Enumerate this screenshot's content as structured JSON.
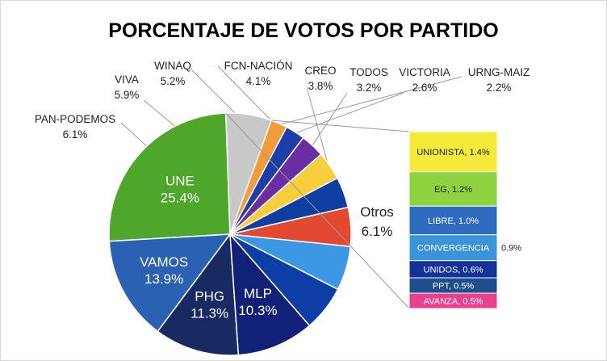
{
  "chart_data": {
    "type": "pie",
    "title": "PORCENTAJE DE VOTOS POR PARTIDO",
    "slices": [
      {
        "name": "UNE",
        "value": 25.4,
        "label": "25.4%",
        "color": "#4ea72a"
      },
      {
        "name": "VAMOS",
        "value": 13.9,
        "label": "13.9%",
        "color": "#2b61b3"
      },
      {
        "name": "PHG",
        "value": 11.3,
        "label": "11.3%",
        "color": "#172b62"
      },
      {
        "name": "MLP",
        "value": 10.3,
        "label": "10.3%",
        "color": "#122178"
      },
      {
        "name": "PAN-PODEMOS",
        "value": 6.1,
        "label": "6.1%",
        "color": "#0d3ea6"
      },
      {
        "name": "VIVA",
        "value": 5.9,
        "label": "5.9%",
        "color": "#3d97e4"
      },
      {
        "name": "WINAQ",
        "value": 5.2,
        "label": "5.2%",
        "color": "#e34931"
      },
      {
        "name": "FCN-NACIÓN",
        "value": 4.1,
        "label": "4.1%",
        "color": "#0e3ea0"
      },
      {
        "name": "CREO",
        "value": 3.8,
        "label": "3.8%",
        "color": "#f7cf3c"
      },
      {
        "name": "TODOS",
        "value": 3.2,
        "label": "3.2%",
        "color": "#6a2ea2"
      },
      {
        "name": "VICTORIA",
        "value": 2.6,
        "label": "2.6%",
        "color": "#1d3ea8"
      },
      {
        "name": "URNG-MAIZ",
        "value": 2.2,
        "label": "2.2%",
        "color": "#f39a3a"
      },
      {
        "name": "Otros",
        "value": 6.1,
        "label": "6.1%",
        "color": "#c8c8c8"
      }
    ],
    "otros_breakdown": [
      {
        "name": "UNIONISTA",
        "value": 1.4,
        "text": "UNIONISTA, 1.4%",
        "color": "#f4ea3a",
        "text_color": "#222222"
      },
      {
        "name": "EG",
        "value": 1.2,
        "text": "EG, 1.2%",
        "color": "#8ed23e",
        "text_color": "#222222"
      },
      {
        "name": "LIBRE",
        "value": 1.0,
        "text": "LIBRE, 1.0%",
        "color": "#2f6cc0",
        "text_color": "#ffffff"
      },
      {
        "name": "CONVERGENCIA",
        "value": 0.9,
        "text": "CONVERGENCIA",
        "outside_text": "0.9%",
        "color": "#3b93d9",
        "text_color": "#ffffff"
      },
      {
        "name": "UNIDOS",
        "value": 0.6,
        "text": "UNIDOS, 0.6%",
        "color": "#13329a",
        "text_color": "#ffffff"
      },
      {
        "name": "PPT",
        "value": 0.5,
        "text": "PPT, 0.5%",
        "color": "#1f4e8c",
        "text_color": "#ffffff"
      },
      {
        "name": "AVANZA",
        "value": 0.5,
        "text": "AVANZA, 0.5%",
        "color": "#e9408f",
        "text_color": "#ffffff"
      }
    ]
  }
}
